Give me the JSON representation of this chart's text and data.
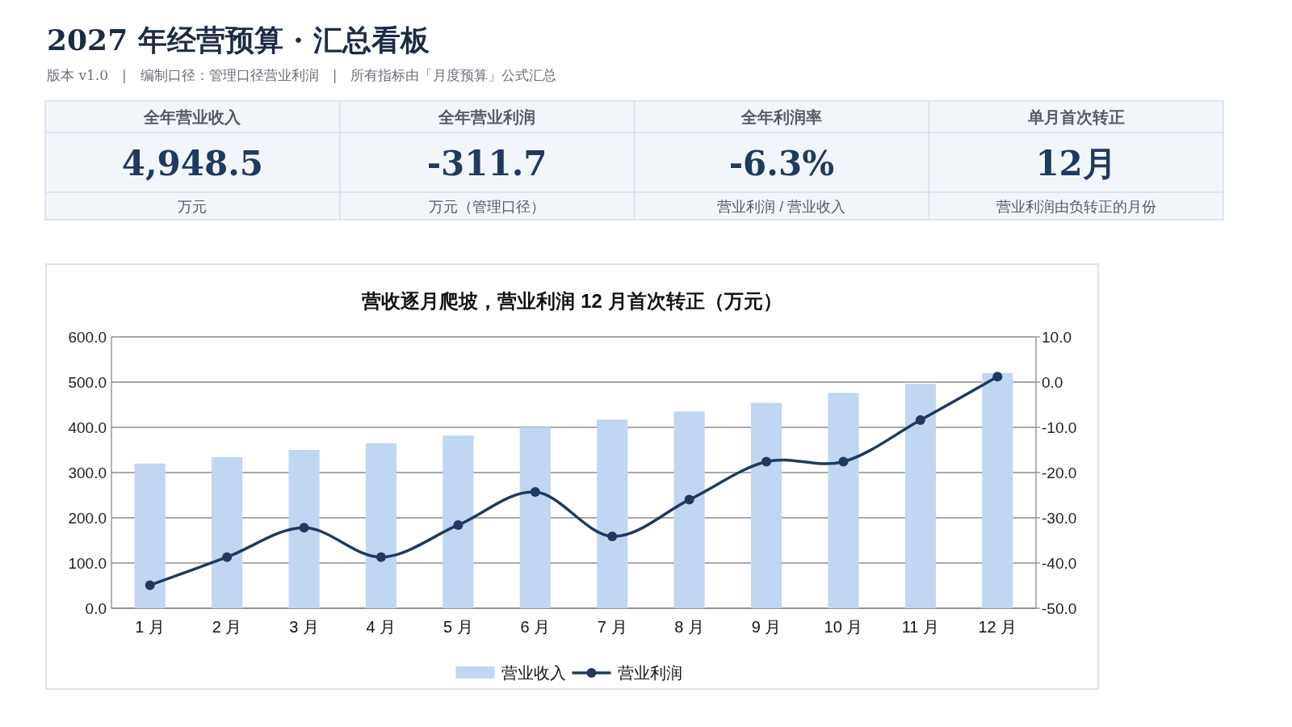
{
  "chart_data": [
    {
      "type": "other",
      "title": "2027 年经营预算 · 汇总看板",
      "subtitle": "版本 v1.0　|　编制口径：管理口径营业利润　|　所有指标由「月度预算」公式汇总",
      "annotations": [
        "全年营业收入",
        "4,948.5",
        "万元",
        "全年营业利润",
        "-311.7",
        "万元（管理口径）",
        "全年利润率",
        "-6.3%",
        "营业利润 / 营业收入",
        "单月首次转正",
        "12月",
        "营业利润由负转正的月份"
      ]
    },
    {
      "type": "bar",
      "title": "营收逐月爬坡，营业利润 12 月首次转正（万元）",
      "categories": [
        "1 月",
        "2 月",
        "3 月",
        "4 月",
        "5 月",
        "6 月",
        "7 月",
        "8 月",
        "9 月",
        "10 月",
        "11 月",
        "12 月"
      ],
      "series": [
        {
          "name": "营业收入",
          "color": "#c0d6f2",
          "values": [
            320,
            334,
            350,
            365,
            382,
            400,
            417,
            435,
            454,
            476,
            496,
            520
          ]
        },
        {
          "name": "营业利润",
          "type": "line",
          "axis": "y2",
          "color": "#1f3a5f",
          "values": [
            -44.9,
            -38.7,
            -32.2,
            -38.7,
            -31.6,
            -24.3,
            -34.1,
            -26.0,
            -17.6,
            -17.6,
            -8.4,
            1.2
          ]
        }
      ],
      "ylim": [
        0,
        600
      ],
      "yticks": [
        {
          "value": 0,
          "label": "0.0"
        },
        {
          "value": 100,
          "label": "100.0"
        },
        {
          "value": 200,
          "label": "200.0"
        },
        {
          "value": 300,
          "label": "300.0"
        },
        {
          "value": 400,
          "label": "400.0"
        },
        {
          "value": 500,
          "label": "500.0"
        },
        {
          "value": 600,
          "label": "600.0"
        }
      ],
      "y2lim": [
        -50,
        10
      ],
      "y2ticks": [
        {
          "value": -50,
          "label": "-50.0"
        },
        {
          "value": -40,
          "label": "-40.0"
        },
        {
          "value": -30,
          "label": "-30.0"
        },
        {
          "value": -20,
          "label": "-20.0"
        },
        {
          "value": -10,
          "label": "-10.0"
        },
        {
          "value": 0,
          "label": "0.0"
        },
        {
          "value": 10,
          "label": "10.0"
        }
      ],
      "grid": "y",
      "legend": "bottom",
      "marker": "circle",
      "line_style": "solid"
    }
  ]
}
